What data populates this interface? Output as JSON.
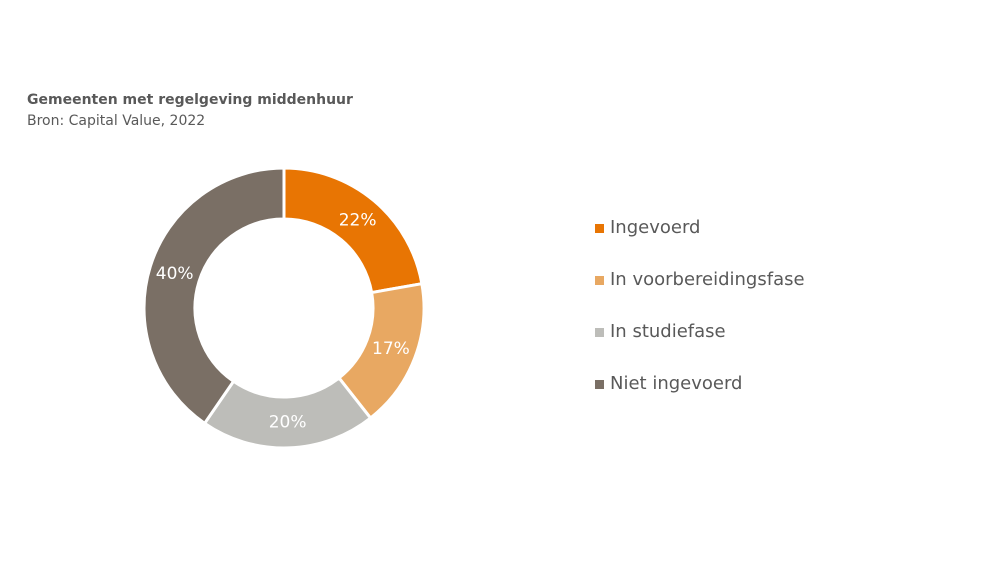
{
  "chart_data": {
    "type": "pie",
    "variant": "donut",
    "title": "Gemeenten met regelgeving middenhuur",
    "subtitle": "Bron: Capital Value, 2022",
    "categories": [
      "Ingevoerd",
      "In voorbereidingsfase",
      "In studiefase",
      "Niet ingevoerd"
    ],
    "values": [
      22,
      17,
      20,
      40
    ],
    "data_labels": [
      "22%",
      "17%",
      "20%",
      "40%"
    ],
    "colors": [
      "#E87503",
      "#E8A862",
      "#BDBDB9",
      "#7A6F65"
    ],
    "legend_position": "right"
  }
}
